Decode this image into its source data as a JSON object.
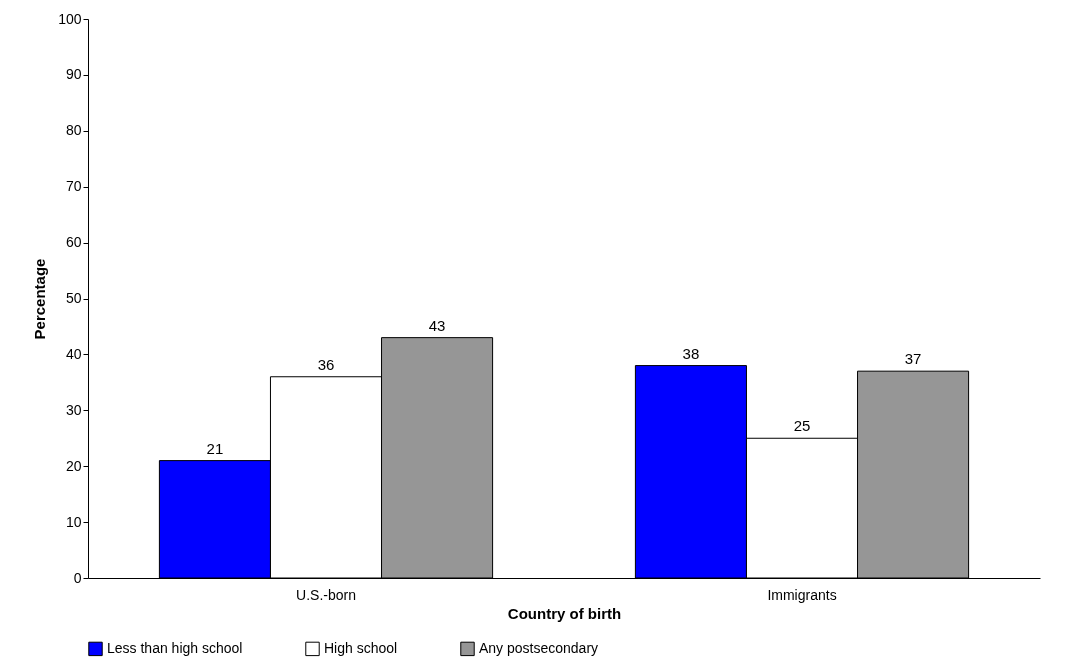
{
  "chart_data": {
    "type": "bar",
    "xlabel": "Country of birth",
    "ylabel": "Percentage",
    "categories": [
      "U.S.-born",
      "Immigrants"
    ],
    "series": [
      {
        "name": "Less than high school",
        "color": "#0000ff",
        "values": [
          21,
          38
        ]
      },
      {
        "name": "High school",
        "color": "#ffffff",
        "values": [
          36,
          25
        ]
      },
      {
        "name": "Any postsecondary",
        "color": "#969696",
        "values": [
          43,
          37
        ]
      }
    ],
    "ylim": [
      0,
      100
    ],
    "yticks": [
      0,
      10,
      20,
      30,
      40,
      50,
      60,
      70,
      80,
      90,
      100
    ],
    "grid": false,
    "legend": "bottom",
    "data_labels": true
  }
}
